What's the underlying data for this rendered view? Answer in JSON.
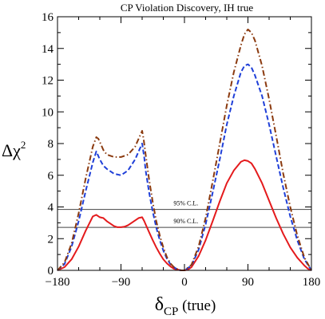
{
  "chart_data": {
    "type": "line",
    "title": "CP Violation Discovery, IH true",
    "xlabel": {
      "main": "δ",
      "sub": "CP",
      "suffix": " (true)"
    },
    "ylabel": {
      "main": "Δχ",
      "sup": "2"
    },
    "xlim": [
      -180,
      180
    ],
    "ylim": [
      0,
      16
    ],
    "xticks": [
      -180,
      -90,
      0,
      90,
      180
    ],
    "xtick_labels": [
      "−180",
      "−90",
      "0",
      "90",
      "180"
    ],
    "yticks": [
      0,
      2,
      4,
      6,
      8,
      10,
      12,
      14,
      16
    ],
    "ytick_labels": [
      "0",
      "2",
      "4",
      "6",
      "8",
      "10",
      "12",
      "14",
      "16"
    ],
    "grid": false,
    "reference_lines": [
      {
        "label": "95% C.L.",
        "y": 3.84
      },
      {
        "label": "90% C.L.",
        "y": 2.71
      }
    ],
    "series": [
      {
        "color": "#e41a1c",
        "style": "solid",
        "x": [
          -180,
          -170,
          -160,
          -150,
          -140,
          -130,
          -125,
          -120,
          -115,
          -110,
          -105,
          -100,
          -95,
          -90,
          -85,
          -80,
          -75,
          -70,
          -65,
          -60,
          -57,
          -55,
          -50,
          -45,
          -40,
          -35,
          -30,
          -25,
          -20,
          -15,
          -10,
          -5,
          0,
          5,
          10,
          20,
          30,
          40,
          50,
          60,
          70,
          80,
          85,
          90,
          95,
          100,
          110,
          120,
          130,
          140,
          150,
          160,
          170,
          175,
          180
        ],
        "y": [
          0.0,
          0.2,
          0.7,
          1.5,
          2.5,
          3.4,
          3.5,
          3.35,
          3.3,
          3.1,
          2.95,
          2.8,
          2.72,
          2.72,
          2.75,
          2.85,
          3.0,
          3.15,
          3.3,
          3.35,
          3.1,
          2.9,
          2.4,
          1.9,
          1.45,
          1.05,
          0.7,
          0.45,
          0.25,
          0.1,
          0.05,
          0.0,
          0.0,
          0.05,
          0.2,
          0.9,
          1.9,
          3.1,
          4.35,
          5.5,
          6.3,
          6.85,
          6.95,
          6.9,
          6.75,
          6.4,
          5.5,
          4.4,
          3.3,
          2.3,
          1.45,
          0.8,
          0.3,
          0.1,
          0.0
        ]
      },
      {
        "color": "#1f3fd8",
        "style": "dashed",
        "x": [
          -180,
          -170,
          -160,
          -150,
          -140,
          -130,
          -125,
          -120,
          -115,
          -110,
          -100,
          -90,
          -80,
          -70,
          -65,
          -60,
          -57,
          -55,
          -50,
          -45,
          -40,
          -35,
          -30,
          -25,
          -20,
          -15,
          -10,
          -5,
          0,
          10,
          20,
          30,
          40,
          50,
          60,
          70,
          80,
          85,
          90,
          95,
          100,
          110,
          120,
          130,
          140,
          150,
          160,
          170,
          180
        ],
        "y": [
          0.0,
          0.4,
          1.5,
          3.1,
          5.0,
          6.8,
          7.5,
          7.0,
          6.6,
          6.4,
          6.1,
          6.0,
          6.3,
          7.0,
          7.5,
          8.0,
          7.1,
          6.3,
          4.9,
          3.7,
          2.7,
          1.9,
          1.25,
          0.75,
          0.4,
          0.2,
          0.05,
          0.0,
          0.0,
          0.3,
          1.3,
          2.9,
          4.9,
          7.0,
          9.2,
          11.0,
          12.5,
          12.9,
          13.0,
          12.8,
          12.3,
          11.0,
          9.2,
          7.2,
          5.2,
          3.4,
          1.9,
          0.7,
          0.0
        ]
      },
      {
        "color": "#8b3a0f",
        "style": "dashdot",
        "x": [
          -180,
          -170,
          -160,
          -150,
          -140,
          -130,
          -125,
          -122,
          -118,
          -115,
          -110,
          -100,
          -90,
          -80,
          -70,
          -65,
          -60,
          -58,
          -55,
          -50,
          -45,
          -40,
          -35,
          -30,
          -25,
          -20,
          -15,
          -10,
          -5,
          0,
          10,
          20,
          30,
          40,
          50,
          60,
          70,
          80,
          85,
          90,
          95,
          100,
          110,
          120,
          130,
          140,
          150,
          160,
          170,
          180
        ],
        "y": [
          0.0,
          0.5,
          1.7,
          3.6,
          5.8,
          7.8,
          8.4,
          8.3,
          7.9,
          7.6,
          7.3,
          7.15,
          7.15,
          7.3,
          7.8,
          8.3,
          8.8,
          8.3,
          7.3,
          5.7,
          4.3,
          3.1,
          2.2,
          1.45,
          0.85,
          0.45,
          0.2,
          0.08,
          0.0,
          0.0,
          0.35,
          1.5,
          3.3,
          5.6,
          8.0,
          10.4,
          12.5,
          14.2,
          14.9,
          15.2,
          15.0,
          14.5,
          12.9,
          10.8,
          8.5,
          6.1,
          4.0,
          2.2,
          0.8,
          0.0
        ]
      }
    ]
  }
}
